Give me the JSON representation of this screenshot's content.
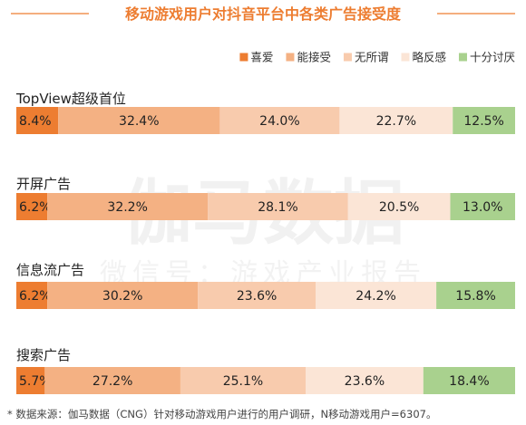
{
  "title": "移动游戏用户对抖音平台中各类广告接受度",
  "watermark": {
    "main": "伽马数据",
    "sub": "微信号：游戏产业报告"
  },
  "footnote": "* 数据来源：伽马数据（CNG）针对移动游戏用户进行的用户调研，N移动游戏用户=6307。",
  "chart_data": {
    "type": "bar",
    "orientation": "horizontal",
    "stacked": true,
    "percent_stacked": true,
    "title": "移动游戏用户对抖音平台中各类广告接受度",
    "legend_position": "top-right",
    "categories": [
      "TopView超级首位",
      "开屏广告",
      "信息流广告",
      "搜索广告"
    ],
    "series": [
      {
        "name": "喜爱",
        "color": "#ED7D31",
        "values": [
          8.4,
          6.2,
          6.2,
          5.7
        ],
        "labels": [
          "8.4%",
          "6.2%",
          "6.2%",
          "5.7%"
        ]
      },
      {
        "name": "能接受",
        "color": "#F4B183",
        "values": [
          32.4,
          32.2,
          30.2,
          27.2
        ],
        "labels": [
          "32.4%",
          "32.2%",
          "30.2%",
          "27.2%"
        ]
      },
      {
        "name": "无所谓",
        "color": "#F8CBAD",
        "values": [
          24.0,
          28.1,
          23.6,
          25.1
        ],
        "labels": [
          "24.0%",
          "28.1%",
          "23.6%",
          "25.1%"
        ]
      },
      {
        "name": "略反感",
        "color": "#FBE5D6",
        "values": [
          22.7,
          20.5,
          24.2,
          23.6
        ],
        "labels": [
          "22.7%",
          "20.5%",
          "24.2%",
          "23.6%"
        ]
      },
      {
        "name": "十分讨厌",
        "color": "#A9D18E",
        "values": [
          12.5,
          13.0,
          15.8,
          18.4
        ],
        "labels": [
          "12.5%",
          "13.0%",
          "15.8%",
          "18.4%"
        ]
      }
    ]
  }
}
